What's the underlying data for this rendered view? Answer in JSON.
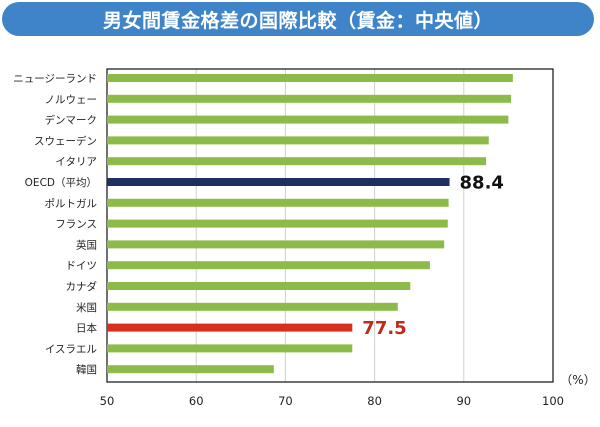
{
  "title": "男女間賃金格差の国際比較（賃金：中央値）",
  "chart_data": {
    "type": "bar",
    "orientation": "horizontal",
    "categories": [
      "ニュージーランド",
      "ノルウェー",
      "デンマーク",
      "スウェーデン",
      "イタリア",
      "OECD（平均）",
      "ポルトガル",
      "フランス",
      "英国",
      "ドイツ",
      "カナダ",
      "米国",
      "日本",
      "イスラエル",
      "韓国"
    ],
    "values": [
      95.5,
      95.3,
      95.0,
      92.8,
      92.5,
      88.4,
      88.3,
      88.2,
      87.8,
      86.2,
      84.0,
      82.6,
      77.5,
      77.5,
      68.7
    ],
    "highlight": {
      "OECD（平均）": {
        "color": "#1f2f5e",
        "label": "88.4",
        "label_color": "#111111"
      },
      "日本": {
        "color": "#d8301c",
        "label": "77.5",
        "label_color": "#c02a18"
      }
    },
    "bar_color": "#8dbb49",
    "xlim": [
      50,
      100
    ],
    "xticks": [
      "50",
      "60",
      "70",
      "80",
      "90",
      "100"
    ],
    "unit": "（%）",
    "grid": true,
    "xlabel": "",
    "ylabel": ""
  }
}
